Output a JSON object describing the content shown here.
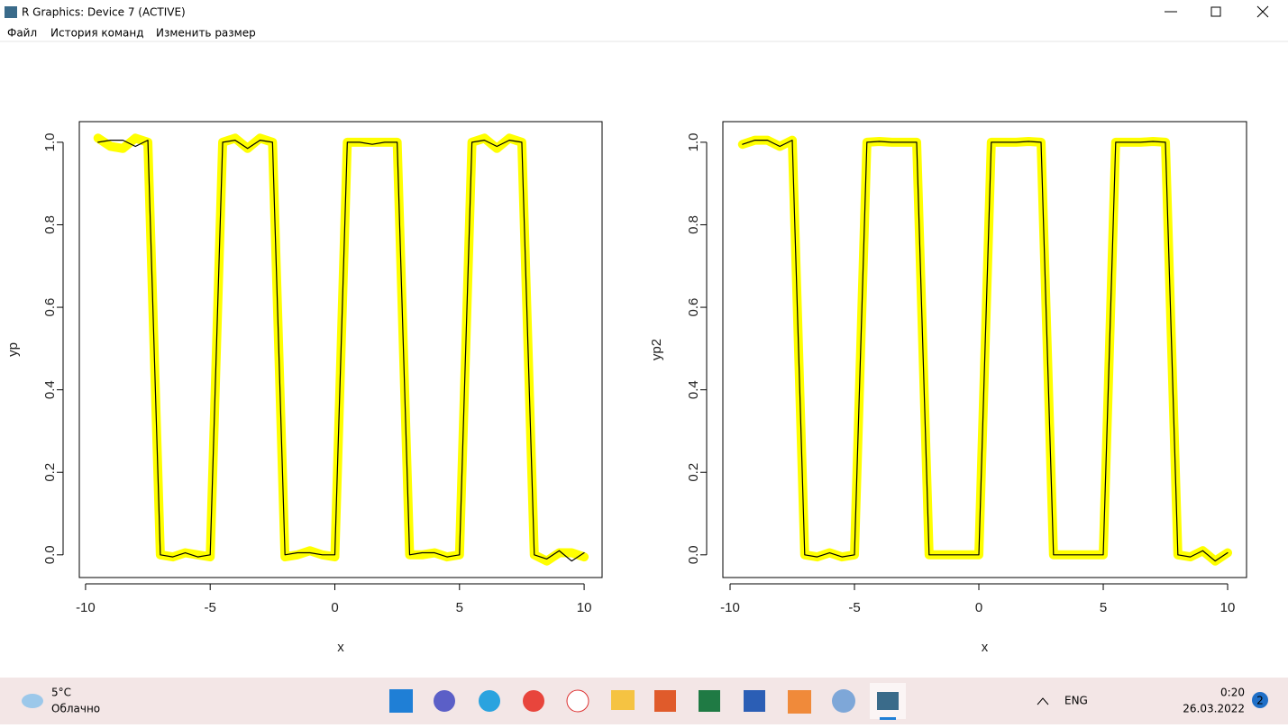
{
  "window": {
    "title": "R Graphics: Device 7 (ACTIVE)",
    "menu": [
      "Файл",
      "История команд",
      "Изменить размер"
    ]
  },
  "chart_data": [
    {
      "type": "line",
      "xlabel": "x",
      "ylabel": "yp",
      "x": [
        -9.5,
        -9,
        -8.5,
        -8,
        -7.5,
        -7,
        -6.5,
        -6,
        -5.5,
        -5,
        -4.5,
        -4,
        -3.5,
        -3,
        -2.5,
        -2,
        -1.5,
        -1,
        -0.5,
        0,
        0.5,
        1,
        1.5,
        2,
        2.5,
        3,
        3.5,
        4,
        4.5,
        5,
        5.5,
        6,
        6.5,
        7,
        7.5,
        8,
        8.5,
        9,
        9.5,
        10
      ],
      "series": [
        {
          "color": "#ffff00",
          "values": [
            1.01,
            0.99,
            0.985,
            1.01,
            1.0,
            0.0,
            -0.005,
            0.005,
            0.0,
            -0.005,
            1.0,
            1.01,
            0.985,
            1.01,
            1.0,
            -0.005,
            0.0,
            0.01,
            0.0,
            -0.005,
            1.0,
            1.0,
            1.0,
            1.0,
            1.0,
            0.0,
            0.0,
            0.005,
            -0.005,
            0.0,
            1.0,
            1.01,
            0.985,
            1.01,
            1.0,
            0.0,
            -0.015,
            0.005,
            0.005,
            -0.005
          ]
        },
        {
          "color": "#000000",
          "values": [
            1.0,
            1.005,
            1.005,
            0.99,
            1.005,
            0.0,
            -0.005,
            0.005,
            -0.005,
            0.0,
            1.0,
            1.005,
            0.985,
            1.005,
            1.0,
            0.0,
            0.005,
            0.005,
            0.0,
            0.0,
            1.0,
            1.0,
            0.995,
            1.0,
            1.0,
            0.0,
            0.005,
            0.005,
            -0.005,
            0.0,
            1.0,
            1.005,
            0.99,
            1.005,
            1.0,
            0.0,
            -0.01,
            0.01,
            -0.015,
            0.005
          ]
        }
      ],
      "xlim": [
        -10.25,
        10.72
      ],
      "ylim": [
        -0.055,
        1.05
      ],
      "xticks": [
        -10,
        -5,
        0,
        5,
        10
      ],
      "yticks": [
        {
          "value": 0,
          "label": "0.0"
        },
        0.2,
        0.4,
        0.6,
        0.8,
        {
          "value": 1,
          "label": "1.0"
        }
      ]
    },
    {
      "type": "line",
      "xlabel": "x",
      "ylabel": "yp2",
      "x": [
        -9.5,
        -9,
        -8.5,
        -8,
        -7.5,
        -7,
        -6.5,
        -6,
        -5.5,
        -5,
        -4.5,
        -4,
        -3.5,
        -3,
        -2.5,
        -2,
        -1.5,
        -1,
        -0.5,
        0,
        0.5,
        1,
        1.5,
        2,
        2.5,
        3,
        3.5,
        4,
        4.5,
        5,
        5.5,
        6,
        6.5,
        7,
        7.5,
        8,
        8.5,
        9,
        9.5,
        10
      ],
      "series": [
        {
          "color": "#ffff00",
          "values": [
            0.995,
            1.005,
            1.005,
            0.99,
            1.005,
            0.0,
            -0.005,
            0.005,
            -0.005,
            0.0,
            1.0,
            1.002,
            1.0,
            1.0,
            1.0,
            0.0,
            0.0,
            0.0,
            0.0,
            0.0,
            1.0,
            1.0,
            1.0,
            1.002,
            1.0,
            0.0,
            0.0,
            0.0,
            0.0,
            0.0,
            1.0,
            1.0,
            1.0,
            1.002,
            1.0,
            0.0,
            -0.005,
            0.01,
            -0.015,
            0.005
          ]
        },
        {
          "color": "#000000",
          "values": [
            0.995,
            1.005,
            1.005,
            0.99,
            1.005,
            0.0,
            -0.005,
            0.005,
            -0.005,
            0.0,
            1.0,
            1.002,
            1.0,
            1.0,
            1.0,
            0.0,
            0.0,
            0.0,
            0.0,
            0.0,
            1.0,
            1.0,
            1.0,
            1.002,
            1.0,
            0.0,
            0.0,
            0.0,
            0.0,
            0.0,
            1.0,
            1.0,
            1.0,
            1.002,
            1.0,
            0.0,
            -0.005,
            0.01,
            -0.015,
            0.005
          ]
        }
      ],
      "xlim": [
        -10.29,
        10.76
      ],
      "ylim": [
        -0.055,
        1.05
      ],
      "xticks": [
        -10,
        -5,
        0,
        5,
        10
      ],
      "yticks": [
        {
          "value": 0,
          "label": "0.0"
        },
        0.2,
        0.4,
        0.6,
        0.8,
        {
          "value": 1,
          "label": "1.0"
        }
      ]
    }
  ],
  "taskbar": {
    "temperature": "5°C",
    "weather": "Облачно",
    "language": "ENG",
    "time": "0:20",
    "date": "26.03.2022",
    "notifications": "2"
  }
}
